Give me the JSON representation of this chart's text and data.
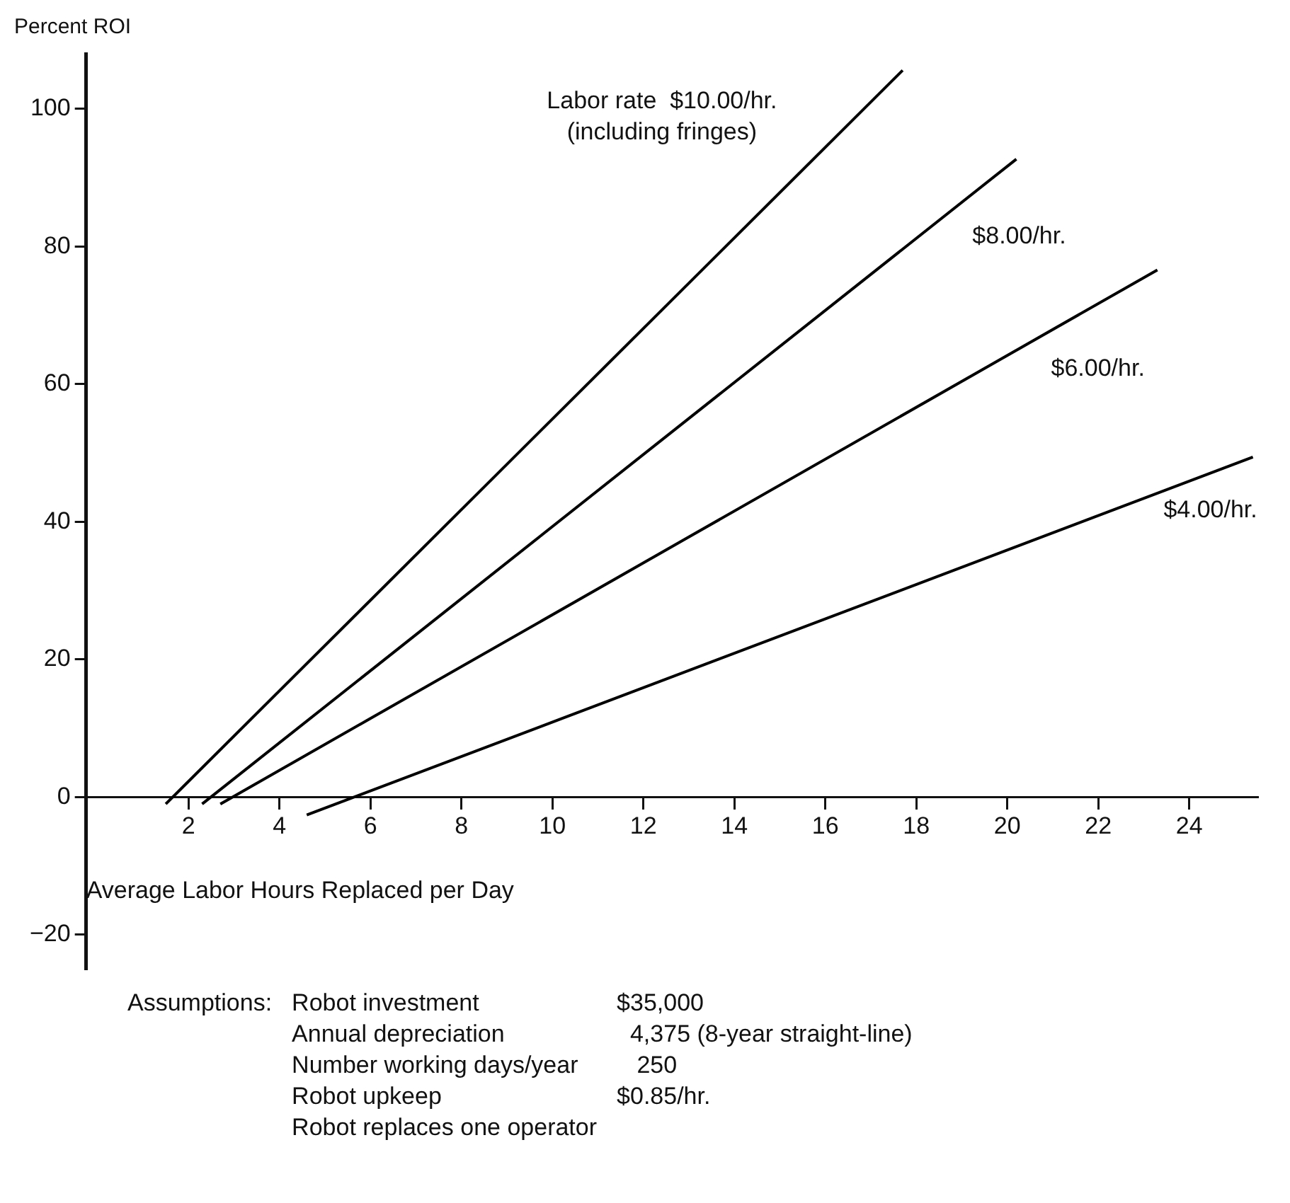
{
  "chart_data": {
    "type": "line",
    "ylabel": "Percent ROI",
    "xlabel": "Average Labor Hours Replaced per Day",
    "xlim": [
      -0.25,
      25.5
    ],
    "xticks": [
      2,
      4,
      6,
      8,
      10,
      12,
      14,
      16,
      18,
      20,
      22,
      24
    ],
    "ylim": [
      -25,
      108
    ],
    "yticks": [
      -20,
      0,
      20,
      40,
      60,
      80,
      100
    ],
    "grid": false,
    "legend": false,
    "marker": "none",
    "line_style": "solid",
    "series": [
      {
        "name": "Labor rate  $10.00/hr. (including fringes)",
        "color": "#000000",
        "x": [
          1.5,
          17.7
        ],
        "values": [
          -1,
          105.6
        ]
      },
      {
        "name": "$8.00/hr.",
        "color": "#000000",
        "x": [
          2.3,
          20.2
        ],
        "values": [
          -1,
          92.7
        ]
      },
      {
        "name": "$6.00/hr.",
        "color": "#000000",
        "x": [
          2.7,
          23.3
        ],
        "values": [
          -1,
          76.6
        ]
      },
      {
        "name": "$4.00/hr.",
        "color": "#000000",
        "x": [
          4.6,
          25.4
        ],
        "values": [
          -2.6,
          49.4
        ]
      }
    ],
    "annotations": [
      "Assumptions:\tRobot investment\t$35,000",
      "\tAnnual depreciation\t  4,375 (8-year straight-line)",
      "\tNumber working days/year\t   250",
      "\tRobot upkeep\t$0.85/hr.",
      "\tRobot replaces one operator\t"
    ]
  }
}
